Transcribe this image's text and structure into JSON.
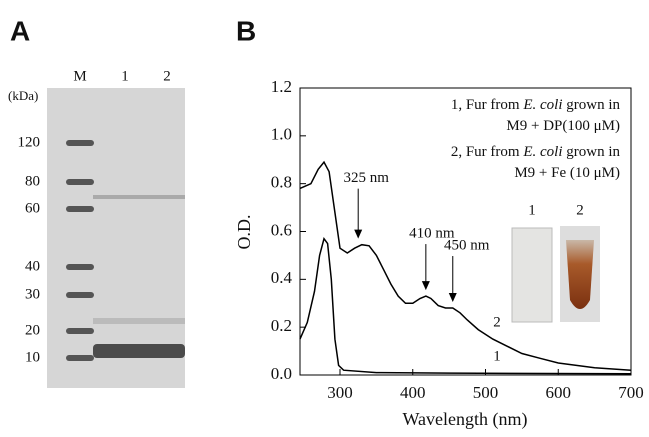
{
  "panel_a": {
    "label": "A",
    "unit": "(kDa)",
    "lanes": [
      "M",
      "1",
      "2"
    ],
    "markers": [
      120,
      80,
      60,
      40,
      30,
      20,
      10
    ]
  },
  "chart_data": {
    "type": "line",
    "panel_label": "B",
    "x_label": "Wavelength (nm)",
    "y_label": "O.D.",
    "xlim": [
      245,
      700
    ],
    "ylim": [
      0,
      1.2
    ],
    "xticks": [
      300,
      400,
      500,
      600,
      700
    ],
    "yticks": [
      {
        "value": 0,
        "label": "0.0"
      },
      0.2,
      0.4,
      0.6,
      0.8,
      {
        "value": 1,
        "label": "1.0"
      },
      1.2
    ],
    "color": "#000000",
    "legend_lines": [
      [
        "1, Fur from ",
        "E. coli",
        " grown in"
      ],
      [
        "M9 + DP(100 μM)"
      ],
      [
        "2, Fur from ",
        "E. coli",
        " grown in"
      ],
      [
        "M9 + Fe (10 μM)"
      ]
    ],
    "inset_labels": [
      "1",
      "2"
    ],
    "annotations": [
      {
        "text": "325 nm",
        "x": 325,
        "y": 0.545
      },
      {
        "text": "410 nm",
        "x": 418,
        "y": 0.33
      },
      {
        "text": "450 nm",
        "x": 455,
        "y": 0.28
      }
    ],
    "series": [
      {
        "name": "1",
        "x": [
          245,
          255,
          265,
          272,
          278,
          283,
          288,
          293,
          298,
          305,
          350,
          450,
          700
        ],
        "values": [
          0.15,
          0.22,
          0.35,
          0.5,
          0.57,
          0.55,
          0.4,
          0.15,
          0.04,
          0.02,
          0.01,
          0.008,
          0.005
        ]
      },
      {
        "name": "2",
        "x": [
          245,
          260,
          270,
          278,
          285,
          293,
          300,
          310,
          320,
          330,
          340,
          350,
          360,
          370,
          380,
          390,
          400,
          410,
          418,
          425,
          435,
          445,
          455,
          465,
          475,
          490,
          510,
          530,
          550,
          575,
          600,
          650,
          700
        ],
        "values": [
          0.78,
          0.8,
          0.86,
          0.89,
          0.85,
          0.68,
          0.53,
          0.51,
          0.53,
          0.545,
          0.54,
          0.5,
          0.44,
          0.38,
          0.33,
          0.3,
          0.3,
          0.32,
          0.33,
          0.32,
          0.29,
          0.28,
          0.28,
          0.26,
          0.23,
          0.19,
          0.15,
          0.12,
          0.09,
          0.07,
          0.05,
          0.03,
          0.02
        ]
      }
    ]
  }
}
